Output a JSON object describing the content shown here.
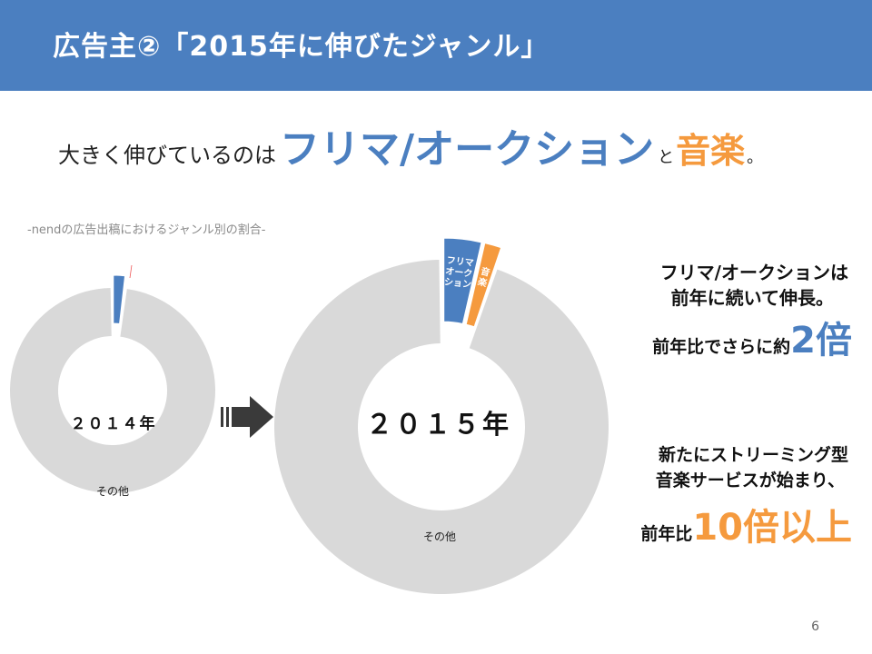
{
  "title": "広告主②「2015年に伸びたジャンル」",
  "headline": {
    "prefix": "大きく伸びているのは",
    "highlight1": "フリマ/オークション",
    "connector": "と",
    "highlight2": "音楽",
    "suffix": "。"
  },
  "subnote": "-nendの広告出稿におけるジャンル別の割合-",
  "chart_data": [
    {
      "type": "pie",
      "year_label": "２０１４年",
      "slices": [
        {
          "name": "フリマ/オークション",
          "value": 1.8
        },
        {
          "name": "音楽",
          "value": 0.1
        },
        {
          "name": "その他",
          "value": 98.1
        }
      ]
    },
    {
      "type": "pie",
      "year_label": "２０１５年",
      "slices": [
        {
          "name": "フリマ/オークション",
          "value": 3.6
        },
        {
          "name": "音楽",
          "value": 1.6
        },
        {
          "name": "その他",
          "value": 94.8
        }
      ]
    }
  ],
  "labels": {
    "other": "その他",
    "slice_furima": [
      "フリマ",
      "オーク",
      "ション"
    ],
    "slice_music": [
      "音",
      "楽"
    ]
  },
  "right_notes": {
    "line1": "フリマ/オークションは",
    "line2": "前年に続いて伸長。",
    "line3_prefix": "前年比でさらに約",
    "line3_big": "2倍",
    "line4": "新たにストリーミング型",
    "line5": "音楽サービスが始まり、",
    "line6_prefix": "前年比",
    "line6_big": "10倍以上"
  },
  "page_number": "6",
  "colors": {
    "title_bg": "#4b7fc0",
    "furima": "#4b7fc0",
    "music": "#f59a3e",
    "other": "#d9d9d9",
    "accent_orange": "#f59a3e"
  }
}
